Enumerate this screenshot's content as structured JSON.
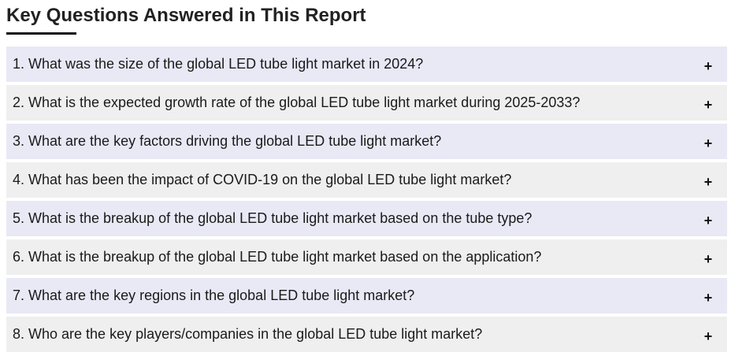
{
  "section": {
    "title": "Key Questions Answered in This Report"
  },
  "faq": {
    "toggle_symbol": "+",
    "items": [
      {
        "question": "1. What was the size of the global LED tube light market in 2024?"
      },
      {
        "question": "2. What is the expected growth rate of the global LED tube light market during 2025-2033?"
      },
      {
        "question": "3. What are the key factors driving the global LED tube light market?"
      },
      {
        "question": "4. What has been the impact of COVID-19 on the global LED tube light market?"
      },
      {
        "question": "5. What is the breakup of the global LED tube light market based on the tube type?"
      },
      {
        "question": "6. What is the breakup of the global LED tube light market based on the application?"
      },
      {
        "question": "7. What are the key regions in the global LED tube light market?"
      },
      {
        "question": "8. Who are the key players/companies in the global LED tube light market?"
      }
    ]
  },
  "colors": {
    "row_odd": "#e8e9f5",
    "row_even": "#efefef",
    "title": "#222222"
  }
}
